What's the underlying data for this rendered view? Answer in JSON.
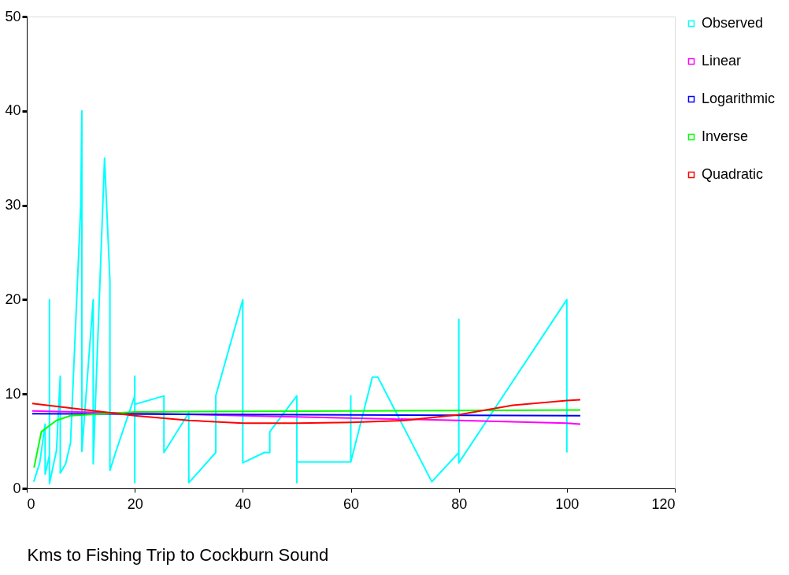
{
  "chart_data": {
    "type": "line",
    "xlabel": "Kms to Fishing Trip to Cockburn Sound",
    "xlim": [
      0,
      120
    ],
    "xticks": [
      0,
      20,
      40,
      60,
      80,
      100,
      120
    ],
    "ylim": [
      0,
      50
    ],
    "yticks": [
      0,
      10,
      20,
      30,
      40,
      50
    ],
    "grid": false,
    "legend": "right",
    "marker": "none",
    "line_style": "solid",
    "series": [
      {
        "name": "Observed",
        "color": "#00ffff",
        "x": [
          1.3,
          2.4,
          3.4,
          3.4,
          4.2,
          4.2,
          4.2,
          5.5,
          6.2,
          6.2,
          7.2,
          8.1,
          10,
          10.2,
          10.2,
          12.3,
          12.3,
          14.4,
          15.4,
          15.4,
          16.5,
          20,
          20,
          20,
          20,
          25.4,
          25.4,
          30,
          30,
          35,
          35,
          40,
          40,
          44,
          45,
          45,
          50,
          50,
          50,
          60,
          60,
          60,
          64,
          65,
          75,
          80,
          80,
          80,
          100,
          100
        ],
        "values": [
          0.7,
          2.7,
          6.8,
          1.5,
          3.5,
          20,
          0.5,
          4,
          11.9,
          1.6,
          2.6,
          4.8,
          30,
          40,
          3.9,
          20,
          2.6,
          35,
          22,
          1.9,
          3.9,
          9.8,
          11.9,
          0.6,
          8.9,
          9.8,
          3.8,
          8,
          0.6,
          3.8,
          9.8,
          20,
          2.7,
          3.8,
          3.8,
          6,
          9.8,
          0.6,
          2.8,
          2.8,
          9.8,
          2.8,
          11.8,
          11.8,
          0.7,
          3.8,
          17.9,
          2.7,
          20,
          3.8
        ]
      },
      {
        "name": "Linear",
        "color": "#ff00ff",
        "x": [
          1,
          80,
          100,
          102.5
        ],
        "values": [
          8.2,
          7.2,
          6.9,
          6.8
        ]
      },
      {
        "name": "Logarithmic",
        "color": "#0000ff",
        "x": [
          1,
          102.5
        ],
        "values": [
          7.9,
          7.7
        ]
      },
      {
        "name": "Inverse",
        "color": "#00ff00",
        "x": [
          1.35,
          2.7,
          5.5,
          8.1,
          20,
          102.5
        ],
        "values": [
          2.2,
          6,
          7.2,
          7.7,
          8.1,
          8.3
        ]
      },
      {
        "name": "Quadratic",
        "color": "#ff0000",
        "x": [
          1,
          20,
          30,
          40,
          50,
          60,
          70,
          80,
          90,
          100,
          102.5
        ],
        "values": [
          9,
          7.7,
          7.2,
          6.9,
          6.9,
          7,
          7.2,
          7.8,
          8.8,
          9.3,
          9.4
        ]
      }
    ]
  }
}
